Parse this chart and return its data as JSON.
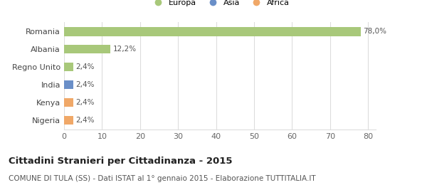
{
  "categories": [
    "Nigeria",
    "Kenya",
    "India",
    "Regno Unito",
    "Albania",
    "Romania"
  ],
  "values": [
    2.4,
    2.4,
    2.4,
    2.4,
    12.2,
    78.0
  ],
  "bar_colors": [
    "#f0a868",
    "#f0a868",
    "#6a8fc8",
    "#a8c87a",
    "#a8c87a",
    "#a8c87a"
  ],
  "labels": [
    "2,4%",
    "2,4%",
    "2,4%",
    "2,4%",
    "12,2%",
    "78,0%"
  ],
  "legend_items": [
    {
      "label": "Europa",
      "color": "#a8c87a"
    },
    {
      "label": "Asia",
      "color": "#6a8fc8"
    },
    {
      "label": "Africa",
      "color": "#f0a868"
    }
  ],
  "xlim": [
    0,
    82
  ],
  "xticks": [
    0,
    10,
    20,
    30,
    40,
    50,
    60,
    70,
    80
  ],
  "title": "Cittadini Stranieri per Cittadinanza - 2015",
  "subtitle": "COMUNE DI TULA (SS) - Dati ISTAT al 1° gennaio 2015 - Elaborazione TUTTITALIA.IT",
  "title_fontsize": 9.5,
  "subtitle_fontsize": 7.5,
  "label_fontsize": 7.5,
  "tick_fontsize": 8,
  "background_color": "#ffffff",
  "grid_color": "#dddddd",
  "bar_height": 0.5
}
